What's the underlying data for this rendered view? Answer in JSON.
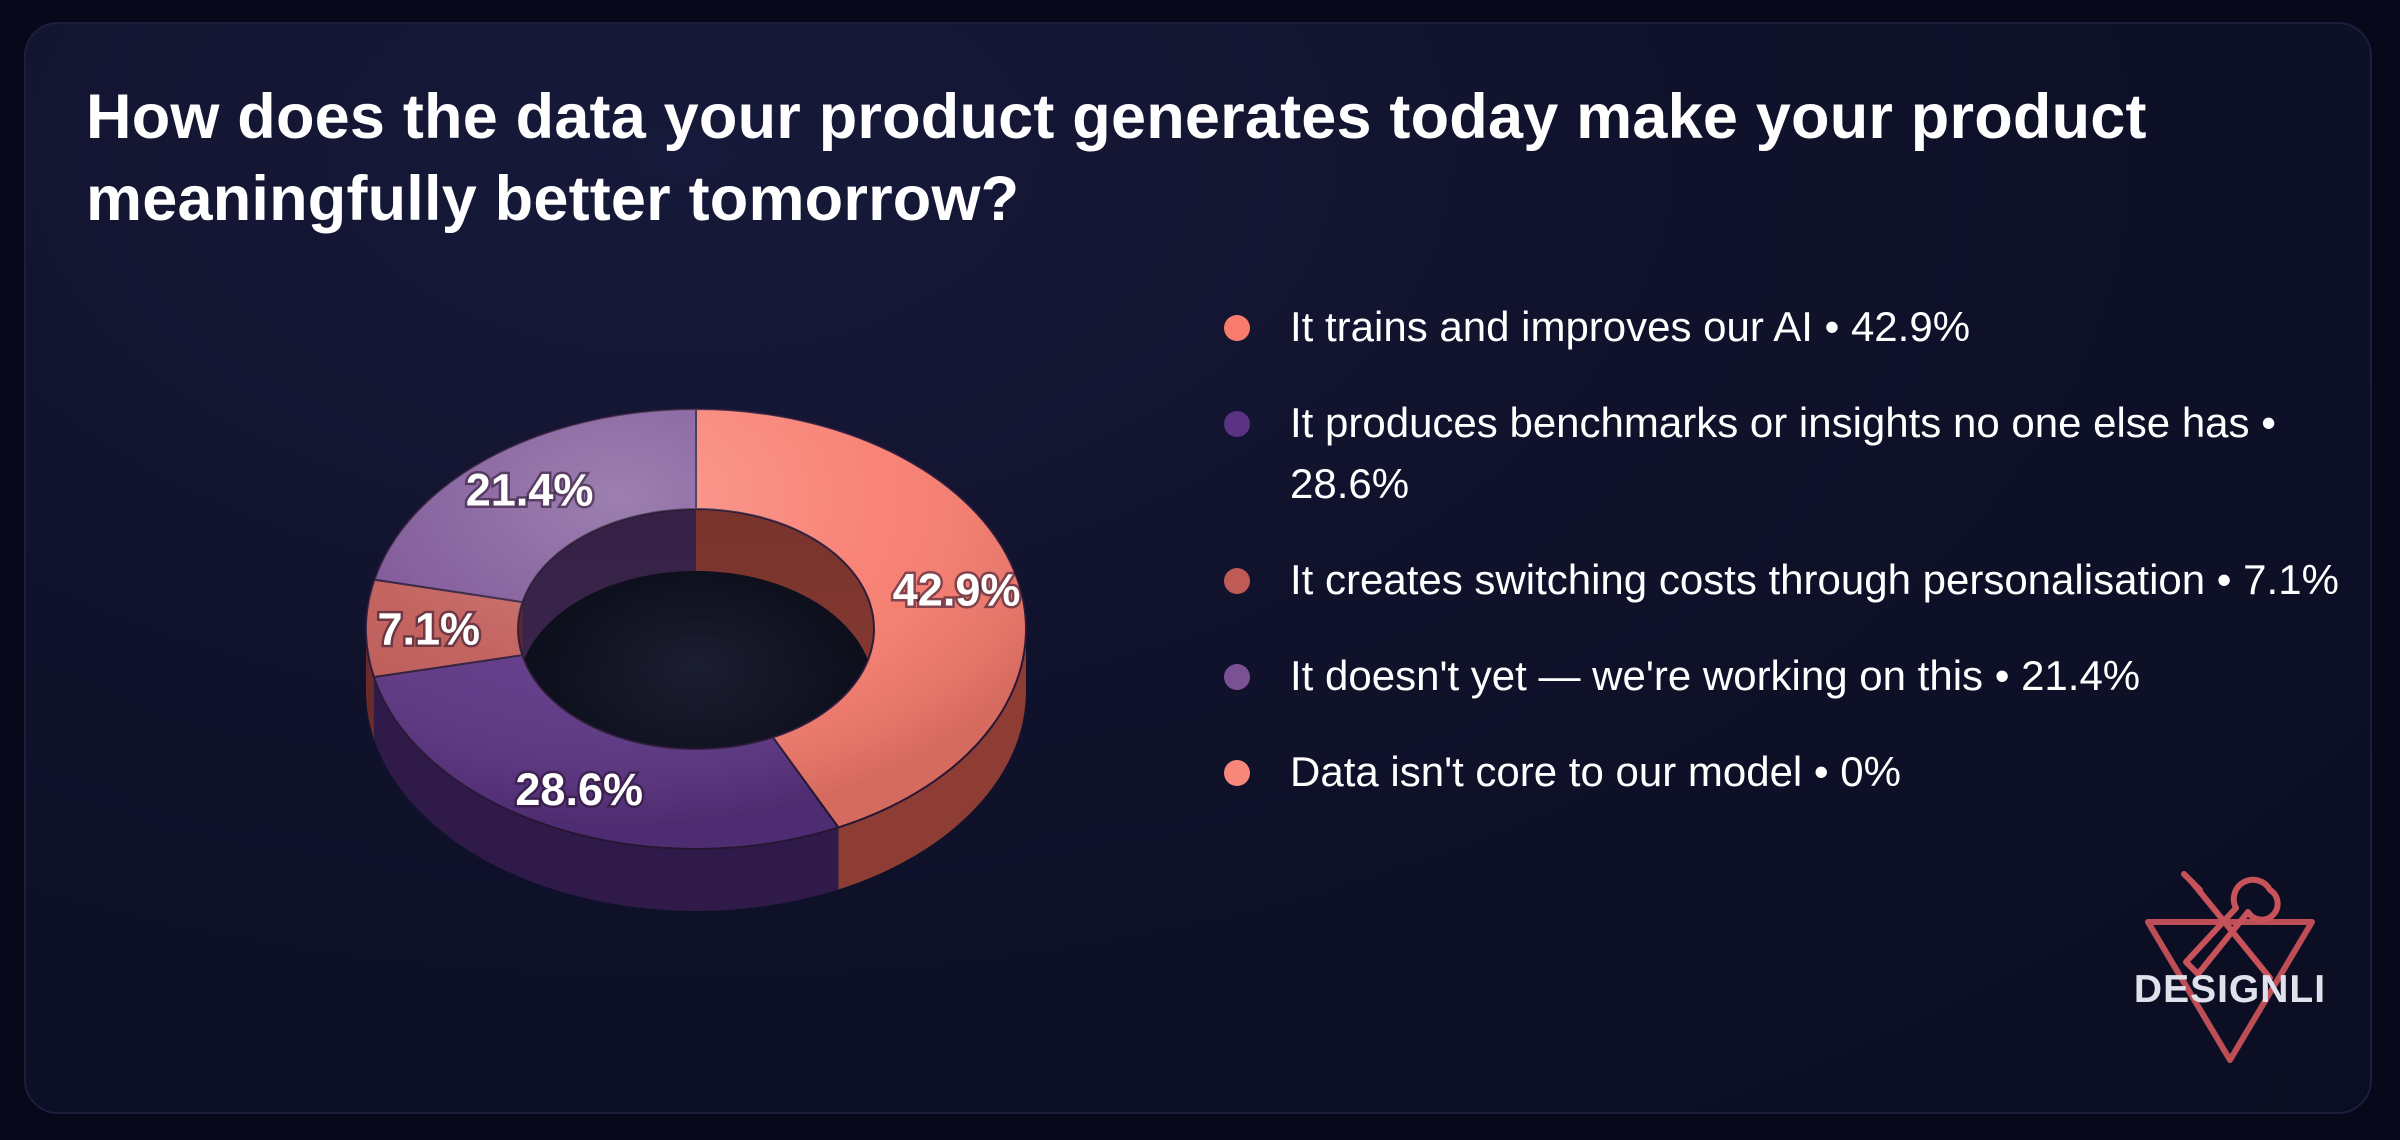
{
  "title": "How does the data your product generates today make your product meaningfully better tomorrow?",
  "chart_data": {
    "type": "pie",
    "title": "How does the data your product generates today make your product meaningfully better tomorrow?",
    "donut": true,
    "legend_position": "right",
    "slices": [
      {
        "name": "It trains and improves our AI",
        "value": 42.9,
        "label": "42.9%",
        "legend_text": "It trains and improves our AI • 42.9%",
        "color": "#f87b6d",
        "side_color": "#8e3d34"
      },
      {
        "name": "It produces benchmarks or insights no one else has",
        "value": 28.6,
        "label": "28.6%",
        "legend_text": "It produces benchmarks or insights no one else has • 28.6%",
        "color": "#5b3383",
        "side_color": "#2f1a49"
      },
      {
        "name": "It creates switching costs through personalisation",
        "value": 7.1,
        "label": "7.1%",
        "legend_text": "It creates switching costs through personalisation • 7.1%",
        "color": "#c05a56",
        "side_color": "#6a2c2a"
      },
      {
        "name": "It doesn't yet — we're working on this",
        "value": 21.4,
        "label": "21.4%",
        "legend_text": "It doesn't yet — we're working on this • 21.4%",
        "color": "#7a5294",
        "side_color": "#3f2752"
      },
      {
        "name": "Data isn't core to our model",
        "value": 0,
        "label": "0%",
        "legend_text": "Data isn't core to our model • 0%",
        "color": "#f6877a",
        "side_color": "#8e3d34"
      }
    ]
  },
  "brand": {
    "name": "DESIGNLI",
    "logo_icon": "wrench-screwdriver-triangle-icon",
    "logo_color": "#c8525a"
  }
}
